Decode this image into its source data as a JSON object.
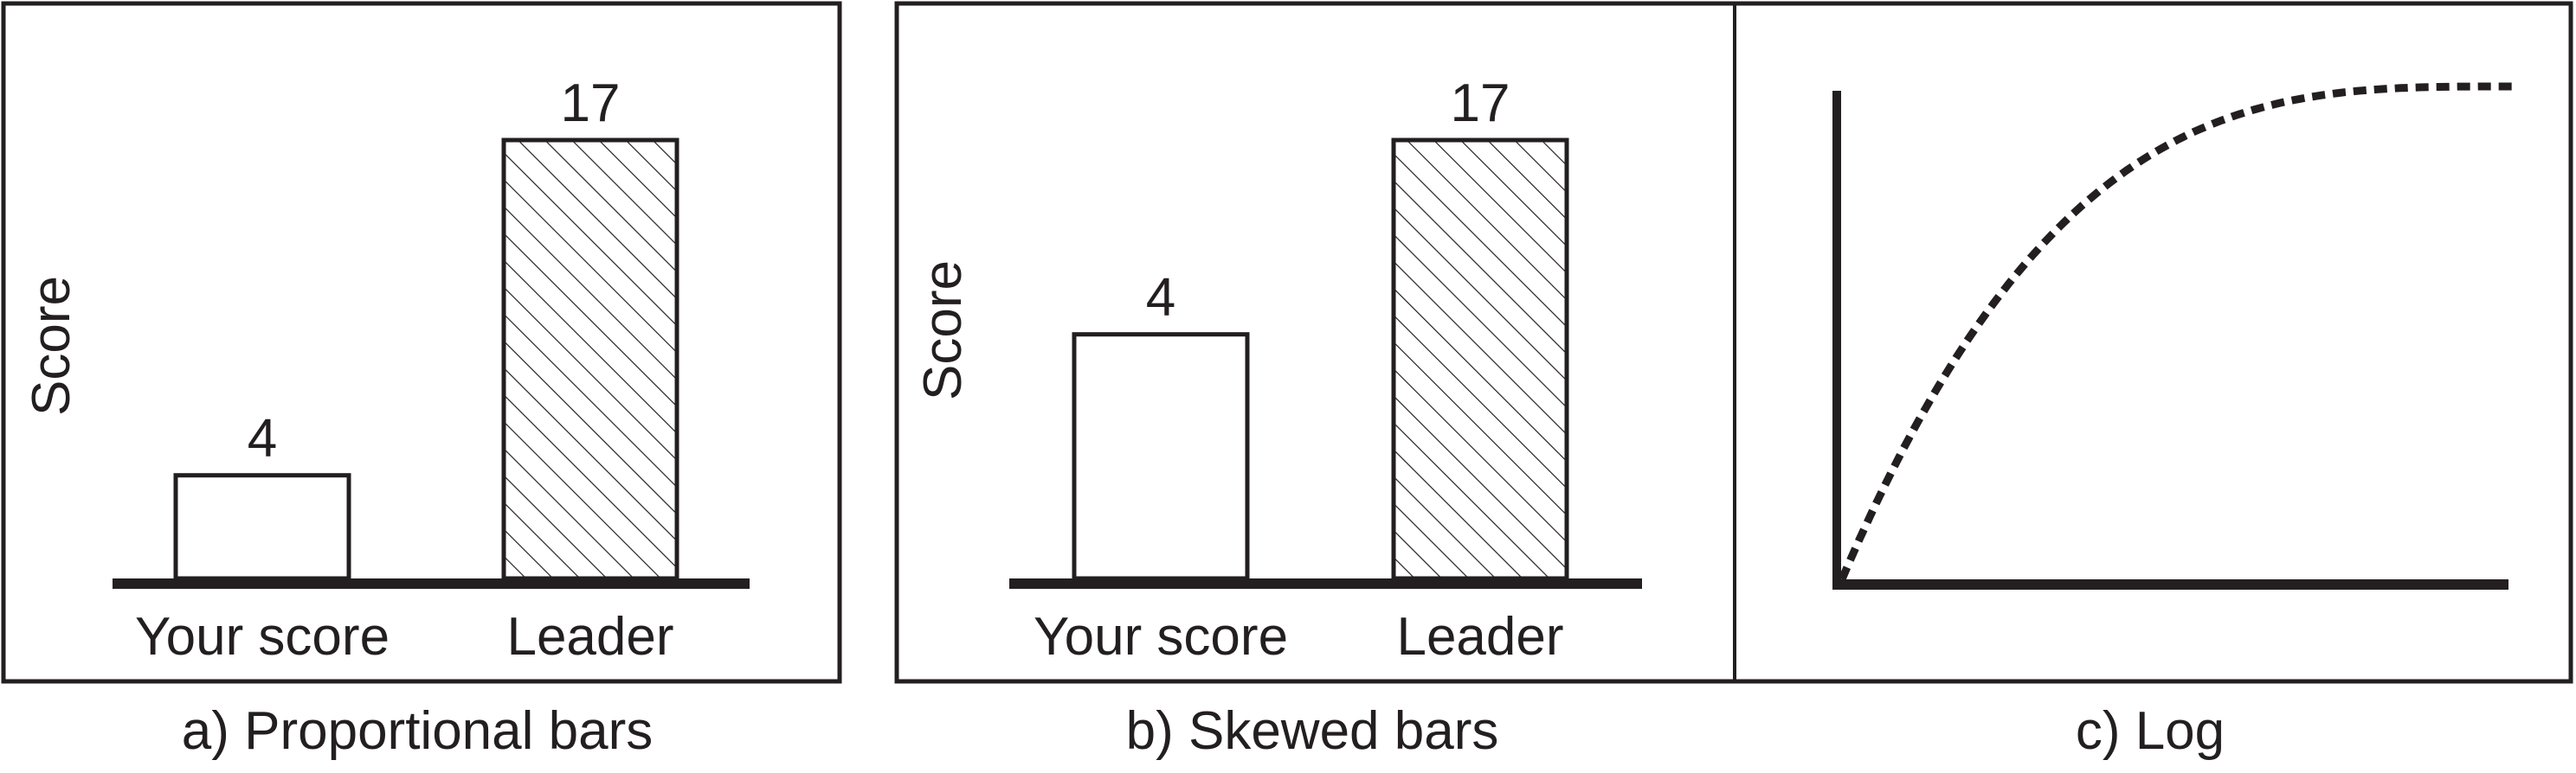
{
  "chart_data": [
    {
      "type": "bar",
      "caption": "a) Proportional bars",
      "ylabel": "Score",
      "categories": [
        "Your score",
        "Leader"
      ],
      "values": [
        4,
        17
      ],
      "value_labels": [
        "4",
        "17"
      ],
      "bar_styles": [
        "empty",
        "hatched"
      ],
      "scale": "proportional",
      "ylim": [
        0,
        17
      ]
    },
    {
      "type": "bar",
      "caption": "b) Skewed bars",
      "ylabel": "Score",
      "categories": [
        "Your score",
        "Leader"
      ],
      "values": [
        4,
        17
      ],
      "value_labels": [
        "4",
        "17"
      ],
      "bar_styles": [
        "empty",
        "hatched"
      ],
      "scale": "log"
    },
    {
      "type": "line",
      "caption": "c) Log",
      "line_style": "dashed",
      "curve": "logarithmic"
    }
  ],
  "colors": {
    "ink": "#231f20",
    "background": "#ffffff"
  }
}
